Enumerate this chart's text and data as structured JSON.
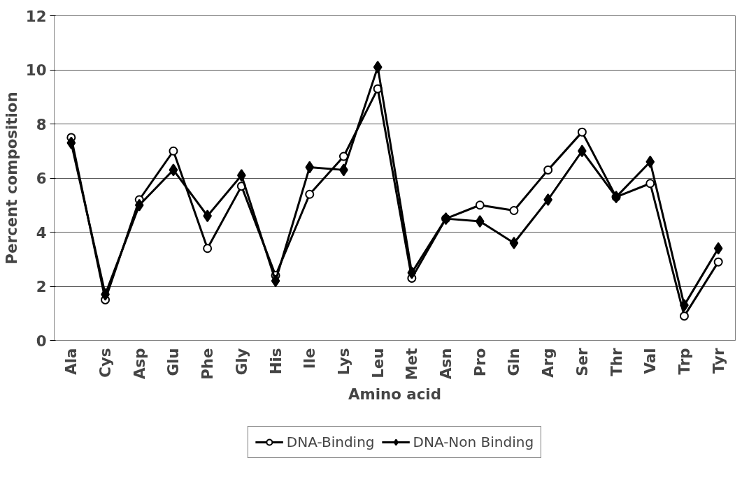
{
  "chart_data": {
    "type": "line",
    "xlabel": "Amino acid",
    "ylabel": "Percent composition",
    "categories": [
      "Ala",
      "Cys",
      "Asp",
      "Glu",
      "Phe",
      "Gly",
      "His",
      "Ile",
      "Lys",
      "Leu",
      "Met",
      "Asn",
      "Pro",
      "Gln",
      "Arg",
      "Ser",
      "Thr",
      "Val",
      "Trp",
      "Tyr"
    ],
    "series": [
      {
        "name": "DNA-Binding",
        "color": "#000000",
        "marker": "circle",
        "values": [
          7.5,
          1.5,
          5.2,
          7.0,
          3.4,
          5.7,
          2.4,
          5.4,
          6.8,
          9.3,
          2.3,
          4.5,
          5.0,
          4.8,
          6.3,
          7.7,
          5.3,
          5.8,
          0.9,
          2.9
        ]
      },
      {
        "name": "DNA-Non Binding",
        "color": "#000000",
        "marker": "diamond",
        "values": [
          7.3,
          1.7,
          5.0,
          6.3,
          4.6,
          6.1,
          2.2,
          6.4,
          6.3,
          10.1,
          2.5,
          4.5,
          4.4,
          3.6,
          5.2,
          7.0,
          5.3,
          6.6,
          1.3,
          3.4
        ]
      }
    ],
    "ylim": [
      0,
      12
    ],
    "yticks": [
      0,
      2,
      4,
      6,
      8,
      10,
      12
    ],
    "grid": "y",
    "legend": "bottom",
    "line_style": "solid"
  }
}
